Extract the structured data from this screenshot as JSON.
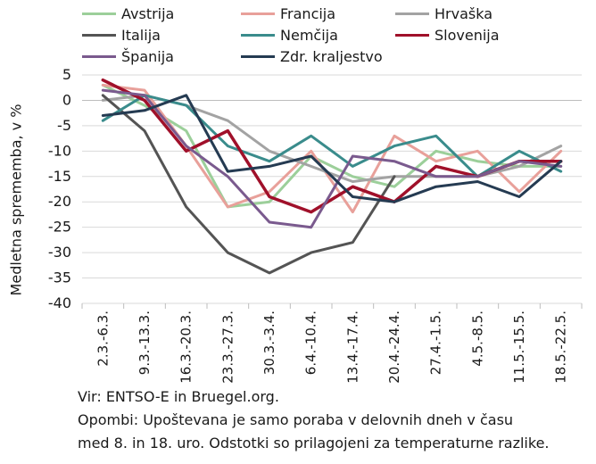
{
  "chart_data": {
    "type": "line",
    "title": "",
    "xlabel": "",
    "ylabel": "Medletna sprememba, v %",
    "ylim": [
      -40,
      5
    ],
    "yticks": [
      5,
      0,
      -5,
      -10,
      -15,
      -20,
      -25,
      -30,
      -35,
      -40
    ],
    "categories": [
      "2.3.-6.3.",
      "9.3.-13.3.",
      "16.3.-20.3.",
      "23.3.-27.3.",
      "30.3.-3.4.",
      "6.4.-10.4.",
      "13.4.-17.4.",
      "20.4.-24.4.",
      "27.4.-1.5.",
      "4.5.-8.5.",
      "11.5.-15.5.",
      "18.5.-22.5."
    ],
    "grid": "horizontal",
    "legend_position": "top",
    "series": [
      {
        "name": "Avstrija",
        "color": "#9ccf9a",
        "values": [
          3,
          -1,
          -6,
          -21,
          -20,
          -11,
          -15,
          -17,
          -10,
          -12,
          -13,
          -13
        ]
      },
      {
        "name": "Francija",
        "color": "#e8a09a",
        "values": [
          3,
          2,
          -9,
          -21,
          -18,
          -10,
          -22,
          -7,
          -12,
          -10,
          -18,
          -10
        ]
      },
      {
        "name": "Hrvaška",
        "color": "#a3a3a3",
        "values": [
          0,
          1,
          -1,
          -4,
          -10,
          -13,
          -16,
          -15,
          -15,
          -15,
          -13,
          -9
        ]
      },
      {
        "name": "Italija",
        "color": "#545454",
        "values": [
          1,
          -6,
          -21,
          -30,
          -34,
          -30,
          -28,
          -15,
          null,
          null,
          null,
          null
        ]
      },
      {
        "name": "Nemčija",
        "color": "#3a8c8c",
        "values": [
          -4,
          1,
          -1,
          -9,
          -12,
          -7,
          -13,
          -9,
          -7,
          -15,
          -10,
          -14
        ]
      },
      {
        "name": "Slovenija",
        "color": "#a0102a",
        "values": [
          4,
          0,
          -10,
          -6,
          -19,
          -22,
          -17,
          -20,
          -13,
          -15,
          -12,
          -12
        ]
      },
      {
        "name": "Španija",
        "color": "#7a5a8e",
        "values": [
          2,
          1,
          -9,
          -15,
          -24,
          -25,
          -11,
          -12,
          -15,
          -15,
          -12,
          -13
        ]
      },
      {
        "name": "Zdr. kraljestvo",
        "color": "#253b52",
        "values": [
          -3,
          -2,
          1,
          -14,
          -13,
          -11,
          -19,
          -20,
          -17,
          -16,
          -19,
          -12
        ]
      }
    ]
  },
  "notes": {
    "line1": "Vir: ENTSO-E in Bruegel.org.",
    "line2": "Opombi: Upoštevana je samo poraba v delovnih dneh v času",
    "line3": "med 8. in 18. uro. Odstotki so prilagojeni za temperaturne razlike."
  }
}
